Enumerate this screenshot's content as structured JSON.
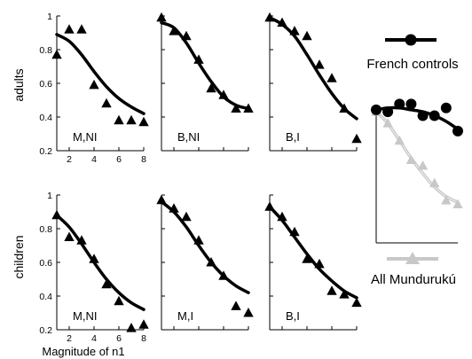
{
  "figure": {
    "row_labels": [
      "adults",
      "children"
    ],
    "x_axis_label": "Magnitude of n1",
    "y_ticks": [
      "0.2",
      "0.4",
      "0.6",
      "0.8",
      "1"
    ],
    "x_ticks": [
      "2",
      "4",
      "6",
      "8"
    ]
  },
  "legend": {
    "french": {
      "label": "French controls",
      "color": "#000000"
    },
    "munduruku": {
      "label": "All Mundurukú",
      "color": "#c8c8c8"
    }
  },
  "chart_data": [
    {
      "type": "scatter",
      "panel": "adults M,NI",
      "row": "adults",
      "label": "M,NI",
      "xlim": [
        1,
        8
      ],
      "ylim": [
        0.2,
        1
      ],
      "grid": false,
      "x": [
        1,
        2,
        3,
        4,
        5,
        6,
        7,
        8
      ],
      "values": [
        0.77,
        0.92,
        0.92,
        0.59,
        0.48,
        0.38,
        0.38,
        0.37
      ],
      "fit": [
        0.89,
        0.85,
        0.77,
        0.67,
        0.58,
        0.51,
        0.46,
        0.42
      ]
    },
    {
      "type": "scatter",
      "panel": "adults B,NI",
      "row": "adults",
      "label": "B,NI",
      "xlim": [
        1,
        8
      ],
      "ylim": [
        0.2,
        1
      ],
      "grid": false,
      "x": [
        1,
        2,
        3,
        4,
        5,
        6,
        7,
        8
      ],
      "values": [
        0.99,
        0.91,
        0.88,
        0.74,
        0.57,
        0.53,
        0.45,
        0.45
      ],
      "fit": [
        0.96,
        0.93,
        0.84,
        0.72,
        0.61,
        0.52,
        0.47,
        0.45
      ]
    },
    {
      "type": "scatter",
      "panel": "adults B,I",
      "row": "adults",
      "label": "B,I",
      "xlim": [
        1,
        8
      ],
      "ylim": [
        0.2,
        1
      ],
      "grid": false,
      "x": [
        1,
        2,
        3,
        4,
        5,
        6,
        7,
        8
      ],
      "values": [
        0.99,
        0.96,
        0.91,
        0.88,
        0.71,
        0.63,
        0.45,
        0.27
      ],
      "fit": [
        0.99,
        0.95,
        0.88,
        0.77,
        0.65,
        0.54,
        0.45,
        0.39
      ]
    },
    {
      "type": "scatter",
      "panel": "children M,NI",
      "row": "children",
      "label": "M,NI",
      "xlim": [
        1,
        8
      ],
      "ylim": [
        0.2,
        1
      ],
      "grid": false,
      "x": [
        1,
        2,
        3,
        4,
        5,
        6,
        7,
        8
      ],
      "values": [
        0.88,
        0.75,
        0.73,
        0.62,
        0.47,
        0.37,
        0.21,
        0.23
      ],
      "fit": [
        0.88,
        0.81,
        0.71,
        0.6,
        0.5,
        0.42,
        0.36,
        0.32
      ]
    },
    {
      "type": "scatter",
      "panel": "children M,I",
      "row": "children",
      "label": "M,I",
      "xlim": [
        1,
        8
      ],
      "ylim": [
        0.2,
        1
      ],
      "grid": false,
      "x": [
        1,
        2,
        3,
        4,
        5,
        6,
        7,
        8
      ],
      "values": [
        0.97,
        0.92,
        0.87,
        0.73,
        0.6,
        0.52,
        0.34,
        0.3
      ],
      "fit": [
        0.96,
        0.9,
        0.81,
        0.7,
        0.6,
        0.52,
        0.46,
        0.42
      ]
    },
    {
      "type": "scatter",
      "panel": "children B,I",
      "row": "children",
      "label": "B,I",
      "xlim": [
        1,
        8
      ],
      "ylim": [
        0.2,
        1
      ],
      "grid": false,
      "x": [
        1,
        2,
        3,
        4,
        5,
        6,
        7,
        8
      ],
      "values": [
        0.93,
        0.87,
        0.78,
        0.62,
        0.59,
        0.43,
        0.41,
        0.36
      ],
      "fit": [
        0.93,
        0.85,
        0.75,
        0.65,
        0.56,
        0.49,
        0.43,
        0.39
      ]
    },
    {
      "type": "scatter",
      "panel": "summary",
      "grid": false,
      "x": [
        1,
        2,
        3,
        4,
        5,
        6,
        7,
        8
      ],
      "ylim": [
        0.2,
        1
      ],
      "series": [
        {
          "name": "French controls",
          "color": "#000000",
          "marker": "circle",
          "values": [
            0.89,
            0.88,
            0.92,
            0.92,
            0.86,
            0.86,
            0.9,
            0.78
          ],
          "fit": [
            0.89,
            0.9,
            0.9,
            0.89,
            0.88,
            0.86,
            0.83,
            0.79
          ]
        },
        {
          "name": "All Mundurukú",
          "color": "#c8c8c8",
          "marker": "triangle",
          "values": [
            0.88,
            0.82,
            0.73,
            0.63,
            0.6,
            0.51,
            0.42,
            0.4
          ],
          "fit": [
            0.88,
            0.82,
            0.73,
            0.64,
            0.56,
            0.49,
            0.44,
            0.41
          ]
        }
      ]
    }
  ]
}
